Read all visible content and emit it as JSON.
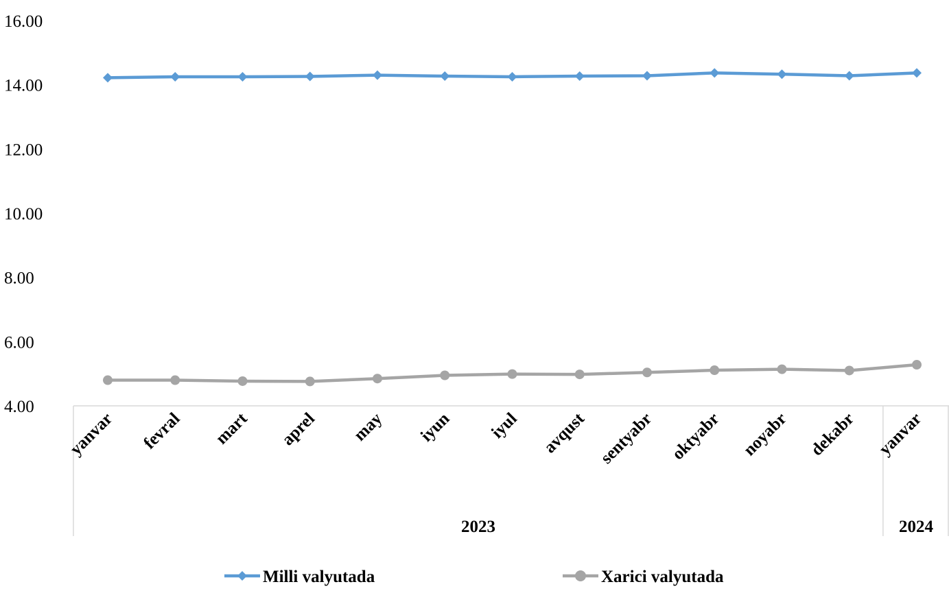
{
  "chart_data": {
    "type": "line",
    "categories": [
      "yanvar",
      "fevral",
      "mart",
      "aprel",
      "may",
      "iyun",
      "iyul",
      "avqust",
      "sentyabr",
      "oktyabr",
      "noyabr",
      "dekabr",
      "yanvar"
    ],
    "groups": [
      {
        "label": "2023",
        "count": 12
      },
      {
        "label": "2024",
        "count": 1
      }
    ],
    "series": [
      {
        "name": "Milli valyutada",
        "color": "#5B9BD5",
        "marker": "diamond",
        "values": [
          14.22,
          14.25,
          14.25,
          14.26,
          14.3,
          14.27,
          14.25,
          14.27,
          14.28,
          14.37,
          14.33,
          14.28,
          14.37
        ]
      },
      {
        "name": "Xarici valyutada",
        "color": "#A5A5A5",
        "marker": "circle",
        "values": [
          4.8,
          4.8,
          4.77,
          4.76,
          4.85,
          4.95,
          4.99,
          4.98,
          5.04,
          5.11,
          5.14,
          5.1,
          5.28
        ]
      }
    ],
    "ylim": [
      4.0,
      16.0
    ],
    "yticks": [
      "4.00",
      "6.00",
      "8.00",
      "10.00",
      "12.00",
      "14.00",
      "16.00"
    ],
    "grid": false,
    "legend_position": "bottom",
    "xlabel": "",
    "ylabel": "",
    "title": ""
  }
}
